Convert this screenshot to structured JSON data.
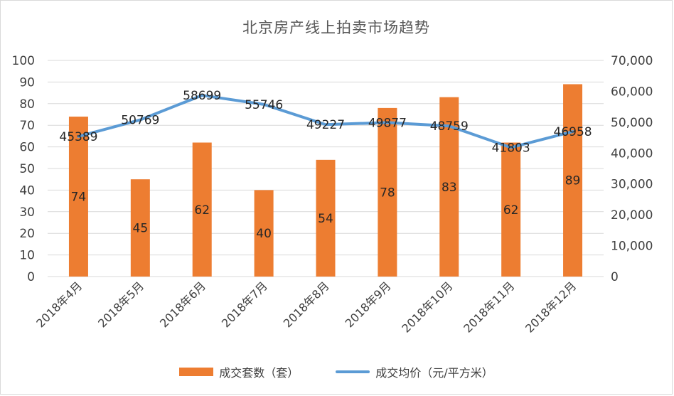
{
  "chart_data": {
    "type": "bar",
    "title": "北京房产线上拍卖市场趋势",
    "categories": [
      "2018年4月",
      "2018年5月",
      "2018年6月",
      "2018年7月",
      "2018年8月",
      "2018年9月",
      "2018年10月",
      "2018年11月",
      "2018年12月"
    ],
    "series": [
      {
        "name": "成交套数（套）",
        "type": "bar",
        "axis": "left",
        "color": "#ed7d31",
        "values": [
          74,
          45,
          62,
          40,
          54,
          78,
          83,
          62,
          89
        ]
      },
      {
        "name": "成交均价（元/平方米）",
        "type": "line",
        "axis": "right",
        "color": "#5b9bd5",
        "values": [
          45389,
          50769,
          58699,
          55746,
          49227,
          49877,
          48759,
          41803,
          46958
        ]
      }
    ],
    "y_left": {
      "lim": [
        0,
        100
      ],
      "ticks": [
        0,
        10,
        20,
        30,
        40,
        50,
        60,
        70,
        80,
        90,
        100
      ],
      "tick_labels": [
        "0",
        "10",
        "20",
        "30",
        "40",
        "50",
        "60",
        "70",
        "80",
        "90",
        "100"
      ]
    },
    "y_right": {
      "lim": [
        0,
        70000
      ],
      "ticks": [
        0,
        10000,
        20000,
        30000,
        40000,
        50000,
        60000,
        70000
      ],
      "tick_labels": [
        "0",
        "10,000",
        "20,000",
        "30,000",
        "40,000",
        "50,000",
        "60,000",
        "70,000"
      ]
    },
    "grid": true,
    "legend": "bottom"
  }
}
